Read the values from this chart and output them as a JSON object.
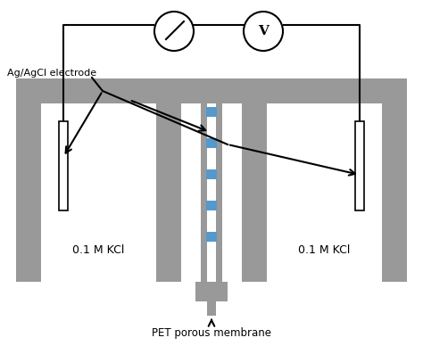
{
  "fig_width": 4.74,
  "fig_height": 3.88,
  "dpi": 100,
  "bg_color": "#ffffff",
  "gray_color": "#999999",
  "blue_color": "#5599cc",
  "label_ag_agcl": "Ag/AgCl electrode",
  "label_kcl_left": "0.1 M KCl",
  "label_kcl_right": "0.1 M KCl",
  "label_membrane": "PET porous membrane"
}
